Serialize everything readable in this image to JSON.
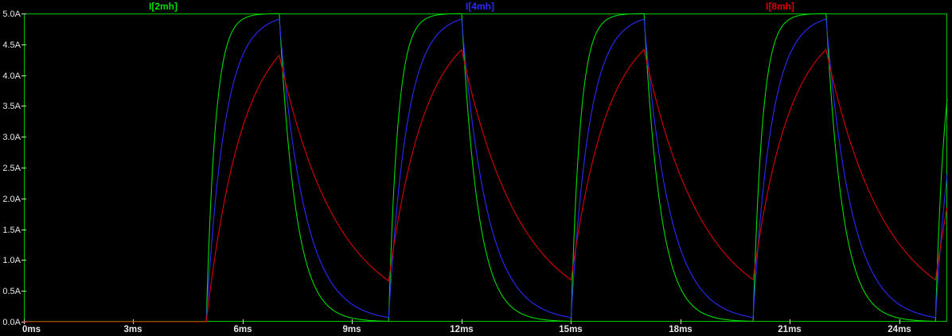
{
  "window": {
    "background": "#000000",
    "type": "spice-waveform-viewer"
  },
  "chart_data": {
    "type": "line",
    "title": "",
    "grid": false,
    "legend_position": "top",
    "background": "#000000",
    "frame_color": "#00c800",
    "tick_color": "#d8d8d8",
    "label_color": "#e8e8e8",
    "x_axis": {
      "unit": "ms",
      "tick_labels": [
        "0ms",
        "3ms",
        "6ms",
        "9ms",
        "12ms",
        "15ms",
        "18ms",
        "21ms",
        "24ms"
      ],
      "tick_values_ms": [
        0,
        3,
        6,
        9,
        12,
        15,
        18,
        21,
        24
      ],
      "range_ms": [
        0,
        25.31
      ]
    },
    "y_axis": {
      "unit": "A",
      "tick_labels": [
        "0.0A",
        "0.5A",
        "1.0A",
        "1.5A",
        "2.0A",
        "2.5A",
        "3.0A",
        "3.5A",
        "4.0A",
        "4.5A",
        "5.0A"
      ],
      "tick_values_A": [
        0,
        0.5,
        1.0,
        1.5,
        2.0,
        2.5,
        3.0,
        3.5,
        4.0,
        4.5,
        5.0
      ],
      "range_A": [
        0,
        5
      ]
    },
    "drive": {
      "description": "periodic pulse: inductor currents rise toward 5A while pulse on, decay exponentially while off",
      "first_rise_ms": 5,
      "on_time_ms": 2,
      "period_ms": 5,
      "rise_times_ms": [
        5,
        10,
        15,
        20,
        25
      ],
      "steady_state_A": 5
    },
    "series": [
      {
        "name": "I[2mh]",
        "color": "#00dc00",
        "tau_rise_ms": 0.25,
        "tau_fall_ms": 0.45,
        "peak_A": 5.0,
        "min_between_pulses_A": 0.01
      },
      {
        "name": "I[4mh]",
        "color": "#2a2aff",
        "tau_rise_ms": 0.5,
        "tau_fall_ms": 0.7,
        "peak_A": 4.91,
        "min_between_pulses_A": 0.07
      },
      {
        "name": "I[8mh]",
        "color": "#dc0000",
        "tau_rise_ms": 1.0,
        "tau_fall_ms": 1.6,
        "peak_A": 4.4,
        "min_between_pulses_A": 0.67
      }
    ]
  }
}
